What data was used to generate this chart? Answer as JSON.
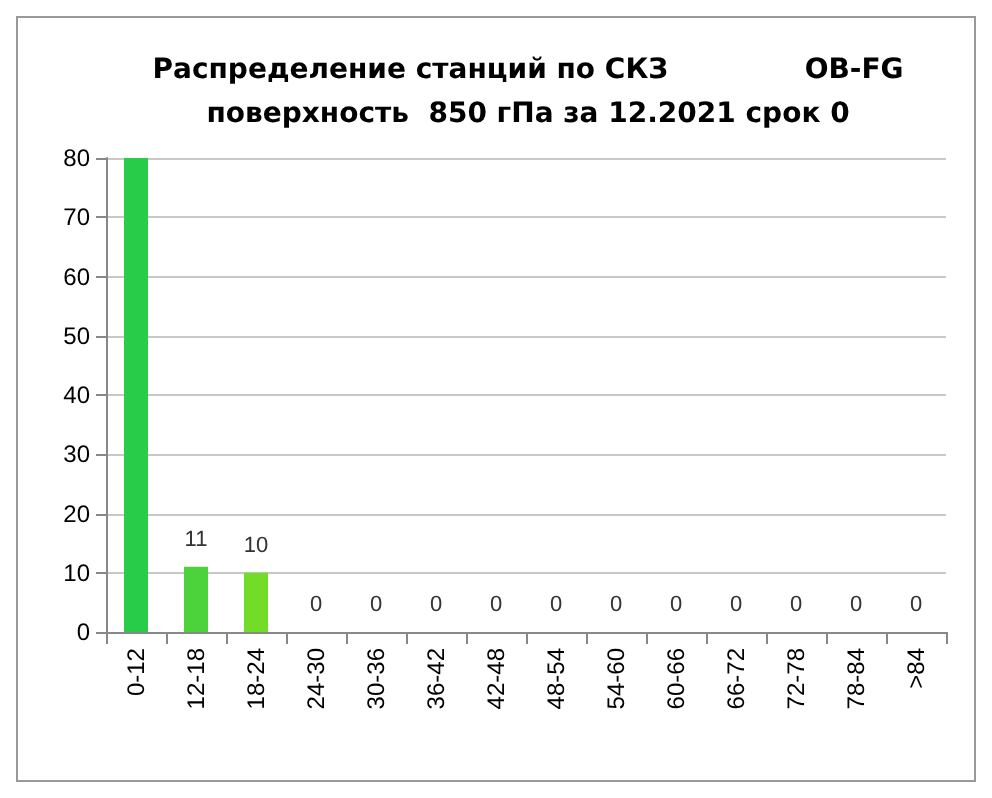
{
  "chart_data": {
    "type": "bar",
    "title": "Распределение станций по СКЗ              OB-FG\nповерхность  850 гПа за 12.2021 срок 0",
    "categories": [
      "0-12",
      "12-18",
      "18-24",
      "24-30",
      "30-36",
      "36-42",
      "42-48",
      "48-54",
      "54-60",
      "60-66",
      "66-72",
      "72-78",
      "78-84",
      ">84"
    ],
    "values": [
      80,
      11,
      10,
      0,
      0,
      0,
      0,
      0,
      0,
      0,
      0,
      0,
      0,
      0
    ],
    "colors": [
      "#28cc48",
      "#4cd23a",
      "#72dc28",
      "#72dc28",
      "#72dc28",
      "#72dc28",
      "#72dc28",
      "#72dc28",
      "#72dc28",
      "#72dc28",
      "#72dc28",
      "#72dc28",
      "#72dc28",
      "#72dc28"
    ],
    "value_labels": [
      null,
      "11",
      "10",
      "0",
      "0",
      "0",
      "0",
      "0",
      "0",
      "0",
      "0",
      "0",
      "0",
      "0"
    ],
    "ylim": [
      0,
      80
    ],
    "yticks": [
      0,
      10,
      20,
      30,
      40,
      50,
      60,
      70,
      80
    ],
    "grid": "y"
  }
}
